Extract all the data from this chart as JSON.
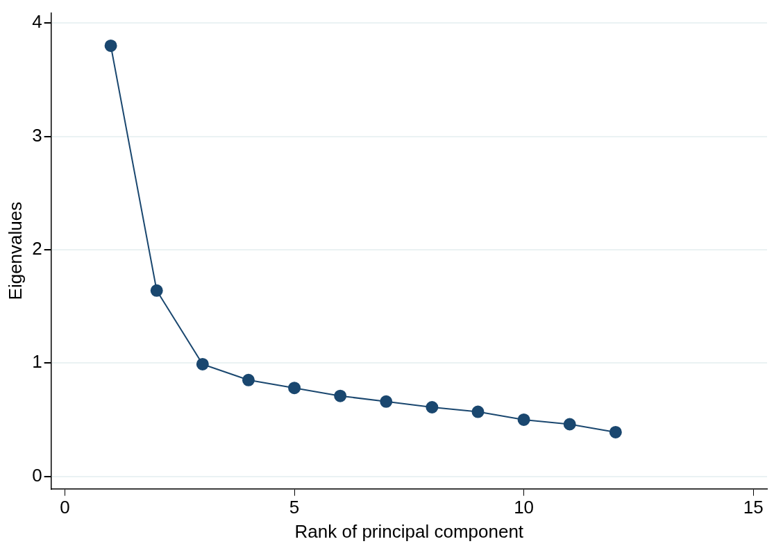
{
  "chart_data": {
    "type": "line",
    "xlabel": "Rank of principal component",
    "ylabel": "Eigenvalues",
    "x": [
      1,
      2,
      3,
      4,
      5,
      6,
      7,
      8,
      9,
      10,
      11,
      12
    ],
    "series": [
      {
        "color": "#1a476f",
        "values": [
          3.8,
          1.64,
          0.99,
          0.85,
          0.78,
          0.71,
          0.66,
          0.61,
          0.57,
          0.5,
          0.46,
          0.39
        ]
      }
    ],
    "xlim": [
      -0.3,
      15.3
    ],
    "xticks": [
      0,
      5,
      10,
      15
    ],
    "ylim": [
      -0.11,
      4.09
    ],
    "yticks": [
      0,
      1,
      2,
      3,
      4
    ],
    "grid": "y",
    "legend": false,
    "marker": "circle",
    "line_style": "solid"
  }
}
